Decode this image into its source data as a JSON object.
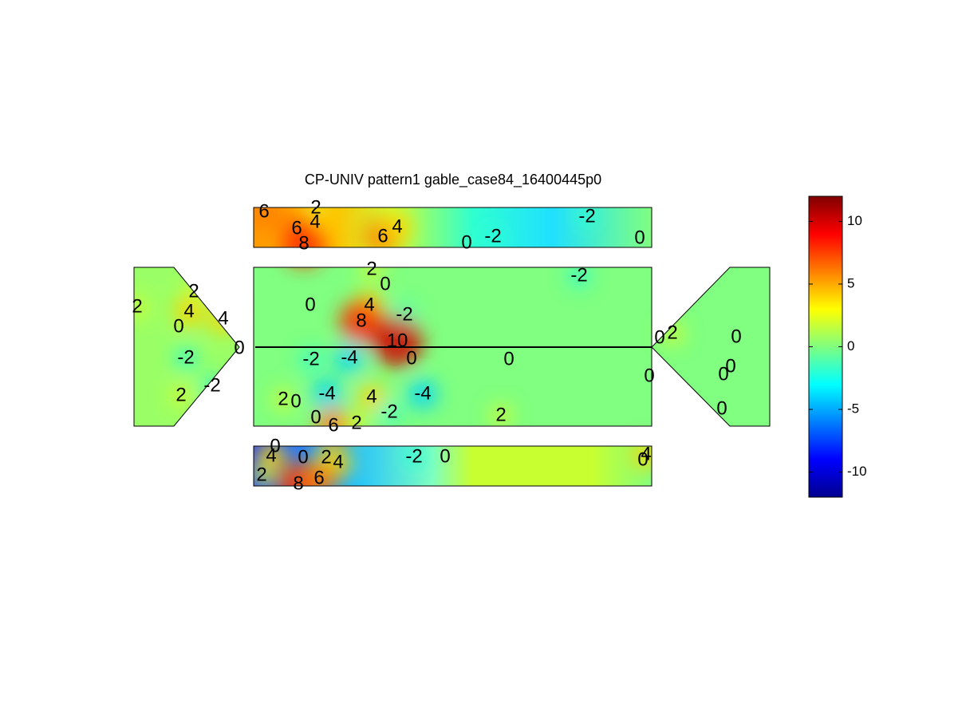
{
  "chart_data": {
    "type": "contour",
    "title": "CP-UNIV pattern1 gable_case84_16400445p0",
    "colormap": "jet",
    "clim": [
      -12,
      12
    ],
    "colorbar_ticks": [
      -10,
      -5,
      0,
      5,
      10
    ],
    "contour_labels": {
      "top": [
        6,
        2,
        4,
        6,
        8,
        6,
        4,
        0,
        -2,
        -2,
        0
      ],
      "middle": [
        2,
        0,
        -2,
        2,
        2,
        4,
        4,
        0,
        0,
        4,
        8,
        -2,
        10,
        0,
        -2,
        -2,
        -4,
        0,
        0,
        -2,
        2,
        2,
        0,
        -4,
        4,
        -4,
        -2,
        2,
        0,
        6,
        2,
        0,
        2,
        0,
        0,
        0,
        0,
        0
      ],
      "bottom": [
        0,
        4,
        0,
        2,
        4,
        -2,
        0,
        2,
        8,
        6,
        0,
        4
      ]
    }
  }
}
